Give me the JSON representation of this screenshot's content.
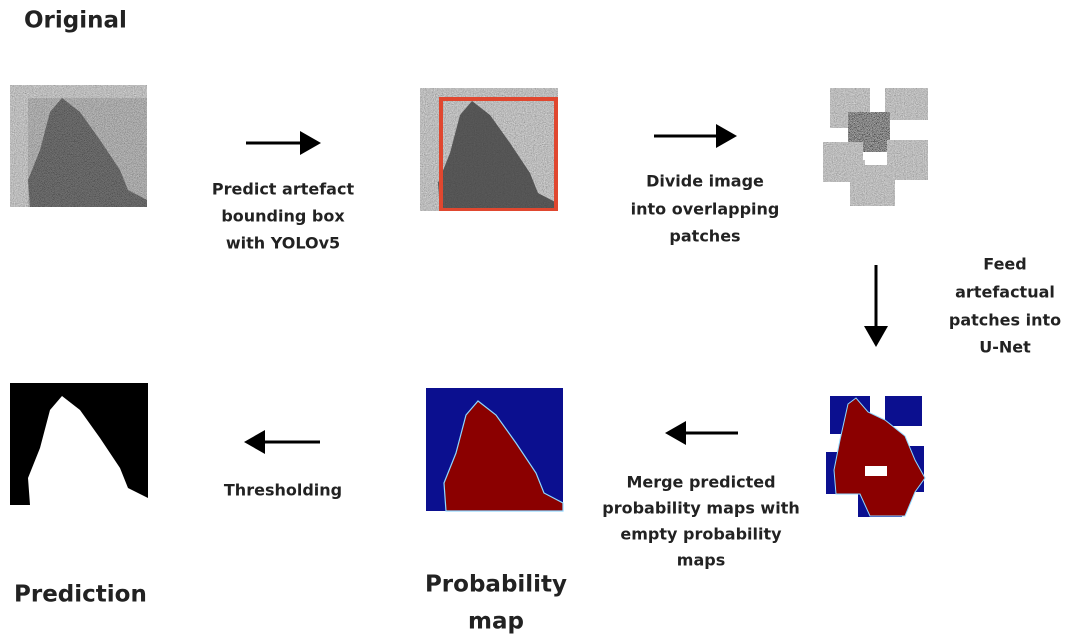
{
  "nodes": [
    {
      "label": [
        "Original"
      ]
    },
    {
      "label": [
        "Prediction"
      ]
    },
    {
      "label": [
        "Probability",
        "map"
      ]
    }
  ],
  "steps": [
    {
      "label": [
        "Predict artefact",
        "bounding box",
        "with YOLOv5"
      ]
    },
    {
      "label": [
        "Divide image",
        "into overlapping",
        "patches"
      ]
    },
    {
      "label": [
        "Feed",
        "artefactual",
        "patches into",
        "U-Net"
      ]
    },
    {
      "label": [
        "Merge predicted",
        "probability maps with",
        "empty probability",
        "maps"
      ]
    },
    {
      "label": [
        "Thresholding"
      ]
    }
  ]
}
